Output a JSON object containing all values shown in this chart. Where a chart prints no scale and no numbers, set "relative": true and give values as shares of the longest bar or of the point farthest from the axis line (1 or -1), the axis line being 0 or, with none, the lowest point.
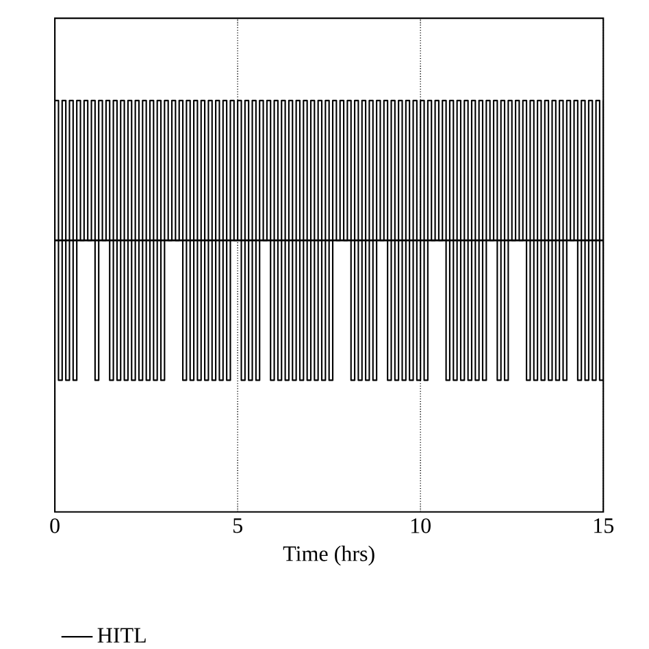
{
  "chart_data": {
    "type": "step",
    "relative": true,
    "xlabel": "Time (hrs)",
    "xlim": [
      0,
      15
    ],
    "xticks": [
      0,
      5,
      10,
      15
    ],
    "grid": "x",
    "legend": "bottom",
    "tick_labels": "x",
    "marker": "none",
    "line_style": "solid",
    "x": [
      0,
      0.1,
      0.2,
      0.3,
      0.4,
      0.5,
      0.6,
      0.7,
      0.8,
      0.9,
      1,
      1.1,
      1.2,
      1.3,
      1.4,
      1.5,
      1.6,
      1.7,
      1.8,
      1.9,
      2,
      2.1,
      2.2,
      2.3,
      2.4,
      2.5,
      2.6,
      2.7,
      2.8,
      2.9,
      3,
      3.1,
      3.2,
      3.3,
      3.4,
      3.5,
      3.6,
      3.7,
      3.8,
      3.9,
      4,
      4.1,
      4.2,
      4.3,
      4.4,
      4.5,
      4.6,
      4.7,
      4.8,
      4.9,
      5,
      5.1,
      5.2,
      5.3,
      5.4,
      5.5,
      5.6,
      5.7,
      5.8,
      5.9,
      6,
      6.1,
      6.2,
      6.3,
      6.4,
      6.5,
      6.6,
      6.7,
      6.8,
      6.9,
      7,
      7.1,
      7.2,
      7.3,
      7.4,
      7.5,
      7.6,
      7.7,
      7.8,
      7.9,
      8,
      8.1,
      8.2,
      8.3,
      8.4,
      8.5,
      8.6,
      8.7,
      8.8,
      8.9,
      9,
      9.1,
      9.2,
      9.3,
      9.4,
      9.5,
      9.6,
      9.7,
      9.8,
      9.9,
      10,
      10.1,
      10.2,
      10.3,
      10.4,
      10.5,
      10.6,
      10.7,
      10.8,
      10.9,
      11,
      11.1,
      11.2,
      11.3,
      11.4,
      11.5,
      11.6,
      11.7,
      11.8,
      11.9,
      12,
      12.1,
      12.2,
      12.3,
      12.4,
      12.5,
      12.6,
      12.7,
      12.8,
      12.9,
      13,
      13.1,
      13.2,
      13.3,
      13.4,
      13.5,
      13.6,
      13.7,
      13.8,
      13.9,
      14,
      14.1,
      14.2,
      14.3,
      14.4,
      14.5,
      14.6,
      14.7,
      14.8,
      14.9,
      15
    ],
    "series": [
      {
        "name": "HITL",
        "color": "#000000",
        "values": [
          1,
          0.32,
          1,
          0.32,
          1,
          0.32,
          1,
          0.66,
          1,
          0.66,
          1,
          0.32,
          1,
          0.66,
          1,
          0.32,
          1,
          0.32,
          1,
          0.32,
          1,
          0.32,
          1,
          0.32,
          1,
          0.32,
          1,
          0.32,
          1,
          0.32,
          1,
          0.66,
          1,
          0.66,
          1,
          0.32,
          1,
          0.32,
          1,
          0.32,
          1,
          0.32,
          1,
          0.32,
          1,
          0.32,
          1,
          0.32,
          1,
          0.66,
          1,
          0.32,
          1,
          0.32,
          1,
          0.32,
          1,
          0.66,
          1,
          0.32,
          1,
          0.32,
          1,
          0.32,
          1,
          0.32,
          1,
          0.32,
          1,
          0.32,
          1,
          0.32,
          1,
          0.32,
          1,
          0.32,
          1,
          0.66,
          1,
          0.66,
          1,
          0.32,
          1,
          0.32,
          1,
          0.32,
          1,
          0.32,
          1,
          0.66,
          1,
          0.32,
          1,
          0.32,
          1,
          0.32,
          1,
          0.32,
          1,
          0.32,
          1,
          0.32,
          1,
          0.66,
          1,
          0.66,
          1,
          0.32,
          1,
          0.32,
          1,
          0.32,
          1,
          0.32,
          1,
          0.32,
          1,
          0.32,
          1,
          0.66,
          1,
          0.32,
          1,
          0.32,
          1,
          0.66,
          1,
          0.66,
          1,
          0.32,
          1,
          0.32,
          1,
          0.32,
          1,
          0.32,
          1,
          0.32,
          1,
          0.32,
          1,
          0.66,
          1,
          0.32,
          1,
          0.32,
          1,
          0.32,
          1,
          0.32,
          1
        ]
      }
    ],
    "ref_lines": [
      {
        "axis": "y",
        "value": 0.66,
        "color": "#000000",
        "line_style": "solid"
      }
    ]
  }
}
